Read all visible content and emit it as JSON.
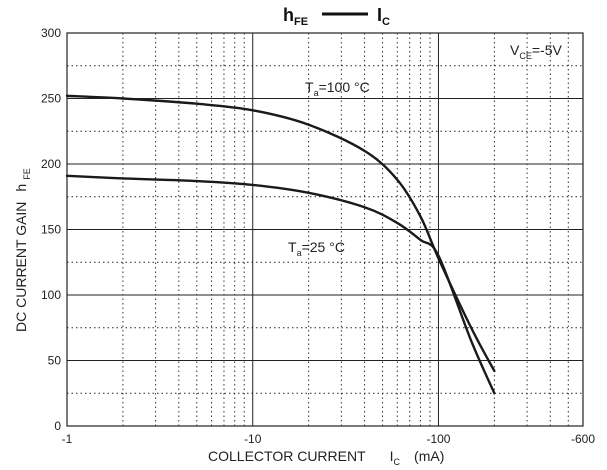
{
  "chart_data": {
    "type": "line",
    "title": {
      "left_main": "h",
      "left_sub": "FE",
      "right_main": "I",
      "right_sub": "C"
    },
    "xlabel": {
      "main": "COLLECTOR CURRENT",
      "symbol": "I",
      "sub": "C",
      "unit": "(mA)"
    },
    "ylabel": {
      "main": "DC CURRENT  GAIN",
      "symbol": "h",
      "sub": "FE"
    },
    "x_scale": "log",
    "x_ticks": [
      "-1",
      "-10",
      "-100",
      "-600"
    ],
    "y_ticks": [
      "0",
      "50",
      "100",
      "150",
      "200",
      "250",
      "300"
    ],
    "xlim": [
      -1,
      -600
    ],
    "ylim": [
      0,
      300
    ],
    "grid": true,
    "condition": {
      "main": "V",
      "sub": "CE",
      "value": "=-5V"
    },
    "series": [
      {
        "name": "100 °C",
        "label": {
          "main": "T",
          "sub": "a",
          "value": "=100 °C"
        },
        "x": [
          -1,
          -2,
          -5,
          -10,
          -20,
          -40,
          -60,
          -80,
          -100,
          -150,
          -200
        ],
        "y": [
          252,
          250,
          246,
          241,
          230,
          210,
          188,
          160,
          128,
          75,
          42
        ]
      },
      {
        "name": "25 °C",
        "label": {
          "main": "T",
          "sub": "a",
          "value": "=25 °C"
        },
        "x": [
          -1,
          -2,
          -5,
          -10,
          -20,
          -40,
          -60,
          -80,
          -100,
          -150,
          -200
        ],
        "y": [
          191,
          189,
          187,
          184,
          178,
          167,
          155,
          142,
          130,
          65,
          25
        ]
      }
    ]
  }
}
